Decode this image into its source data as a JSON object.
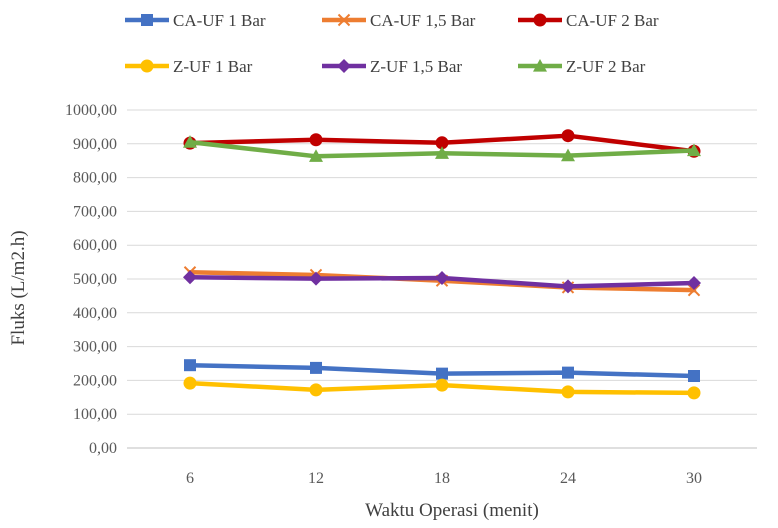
{
  "chart_data": {
    "type": "line",
    "title": "",
    "xlabel": "Waktu Operasi (menit)",
    "ylabel": "Fluks (L/m2.h)",
    "categories": [
      "6",
      "12",
      "18",
      "24",
      "30"
    ],
    "yticks": [
      "0,00",
      "100,00",
      "200,00",
      "300,00",
      "400,00",
      "500,00",
      "600,00",
      "700,00",
      "800,00",
      "900,00",
      "1000,00"
    ],
    "ylim": [
      0,
      1000
    ],
    "grid": true,
    "legend_position": "top",
    "series": [
      {
        "name": "CA-UF 1 Bar",
        "color": "#4472C4",
        "marker": "square",
        "values": [
          245,
          237,
          220,
          223,
          213
        ]
      },
      {
        "name": "CA-UF 1,5 Bar",
        "color": "#ED7D31",
        "marker": "x",
        "values": [
          520,
          512,
          495,
          475,
          467
        ]
      },
      {
        "name": "CA-UF 2 Bar",
        "color": "#C00000",
        "marker": "circle",
        "values": [
          902,
          912,
          903,
          924,
          878
        ]
      },
      {
        "name": "Z-UF 1 Bar",
        "color": "#FFC000",
        "marker": "circle",
        "values": [
          192,
          172,
          186,
          166,
          163
        ]
      },
      {
        "name": "Z-UF 1,5 Bar",
        "color": "#7030A0",
        "marker": "diamond",
        "values": [
          505,
          501,
          503,
          478,
          488
        ]
      },
      {
        "name": "Z-UF 2 Bar",
        "color": "#70AD47",
        "marker": "triangle",
        "values": [
          905,
          863,
          872,
          865,
          880
        ]
      }
    ]
  }
}
